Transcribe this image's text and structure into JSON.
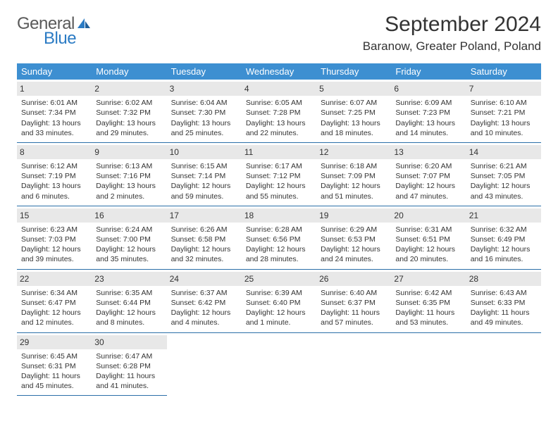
{
  "logo": {
    "line1": "General",
    "line2": "Blue"
  },
  "title": "September 2024",
  "location": "Baranow, Greater Poland, Poland",
  "colors": {
    "header_bg": "#3d8fd1",
    "header_text": "#ffffff",
    "dayheader_bg": "#e8e8e8",
    "border": "#2b6fa8",
    "logo_gray": "#5a5a5a",
    "logo_blue": "#2b7bc4",
    "text": "#333333",
    "page_bg": "#ffffff"
  },
  "typography": {
    "title_fontsize": 30,
    "location_fontsize": 17,
    "weekday_fontsize": 13,
    "daynum_fontsize": 12,
    "cell_fontsize": 10.5,
    "font_family": "Arial"
  },
  "weekdays": [
    "Sunday",
    "Monday",
    "Tuesday",
    "Wednesday",
    "Thursday",
    "Friday",
    "Saturday"
  ],
  "days": [
    {
      "n": "1",
      "sr": "Sunrise: 6:01 AM",
      "ss": "Sunset: 7:34 PM",
      "d1": "Daylight: 13 hours",
      "d2": "and 33 minutes."
    },
    {
      "n": "2",
      "sr": "Sunrise: 6:02 AM",
      "ss": "Sunset: 7:32 PM",
      "d1": "Daylight: 13 hours",
      "d2": "and 29 minutes."
    },
    {
      "n": "3",
      "sr": "Sunrise: 6:04 AM",
      "ss": "Sunset: 7:30 PM",
      "d1": "Daylight: 13 hours",
      "d2": "and 25 minutes."
    },
    {
      "n": "4",
      "sr": "Sunrise: 6:05 AM",
      "ss": "Sunset: 7:28 PM",
      "d1": "Daylight: 13 hours",
      "d2": "and 22 minutes."
    },
    {
      "n": "5",
      "sr": "Sunrise: 6:07 AM",
      "ss": "Sunset: 7:25 PM",
      "d1": "Daylight: 13 hours",
      "d2": "and 18 minutes."
    },
    {
      "n": "6",
      "sr": "Sunrise: 6:09 AM",
      "ss": "Sunset: 7:23 PM",
      "d1": "Daylight: 13 hours",
      "d2": "and 14 minutes."
    },
    {
      "n": "7",
      "sr": "Sunrise: 6:10 AM",
      "ss": "Sunset: 7:21 PM",
      "d1": "Daylight: 13 hours",
      "d2": "and 10 minutes."
    },
    {
      "n": "8",
      "sr": "Sunrise: 6:12 AM",
      "ss": "Sunset: 7:19 PM",
      "d1": "Daylight: 13 hours",
      "d2": "and 6 minutes."
    },
    {
      "n": "9",
      "sr": "Sunrise: 6:13 AM",
      "ss": "Sunset: 7:16 PM",
      "d1": "Daylight: 13 hours",
      "d2": "and 2 minutes."
    },
    {
      "n": "10",
      "sr": "Sunrise: 6:15 AM",
      "ss": "Sunset: 7:14 PM",
      "d1": "Daylight: 12 hours",
      "d2": "and 59 minutes."
    },
    {
      "n": "11",
      "sr": "Sunrise: 6:17 AM",
      "ss": "Sunset: 7:12 PM",
      "d1": "Daylight: 12 hours",
      "d2": "and 55 minutes."
    },
    {
      "n": "12",
      "sr": "Sunrise: 6:18 AM",
      "ss": "Sunset: 7:09 PM",
      "d1": "Daylight: 12 hours",
      "d2": "and 51 minutes."
    },
    {
      "n": "13",
      "sr": "Sunrise: 6:20 AM",
      "ss": "Sunset: 7:07 PM",
      "d1": "Daylight: 12 hours",
      "d2": "and 47 minutes."
    },
    {
      "n": "14",
      "sr": "Sunrise: 6:21 AM",
      "ss": "Sunset: 7:05 PM",
      "d1": "Daylight: 12 hours",
      "d2": "and 43 minutes."
    },
    {
      "n": "15",
      "sr": "Sunrise: 6:23 AM",
      "ss": "Sunset: 7:03 PM",
      "d1": "Daylight: 12 hours",
      "d2": "and 39 minutes."
    },
    {
      "n": "16",
      "sr": "Sunrise: 6:24 AM",
      "ss": "Sunset: 7:00 PM",
      "d1": "Daylight: 12 hours",
      "d2": "and 35 minutes."
    },
    {
      "n": "17",
      "sr": "Sunrise: 6:26 AM",
      "ss": "Sunset: 6:58 PM",
      "d1": "Daylight: 12 hours",
      "d2": "and 32 minutes."
    },
    {
      "n": "18",
      "sr": "Sunrise: 6:28 AM",
      "ss": "Sunset: 6:56 PM",
      "d1": "Daylight: 12 hours",
      "d2": "and 28 minutes."
    },
    {
      "n": "19",
      "sr": "Sunrise: 6:29 AM",
      "ss": "Sunset: 6:53 PM",
      "d1": "Daylight: 12 hours",
      "d2": "and 24 minutes."
    },
    {
      "n": "20",
      "sr": "Sunrise: 6:31 AM",
      "ss": "Sunset: 6:51 PM",
      "d1": "Daylight: 12 hours",
      "d2": "and 20 minutes."
    },
    {
      "n": "21",
      "sr": "Sunrise: 6:32 AM",
      "ss": "Sunset: 6:49 PM",
      "d1": "Daylight: 12 hours",
      "d2": "and 16 minutes."
    },
    {
      "n": "22",
      "sr": "Sunrise: 6:34 AM",
      "ss": "Sunset: 6:47 PM",
      "d1": "Daylight: 12 hours",
      "d2": "and 12 minutes."
    },
    {
      "n": "23",
      "sr": "Sunrise: 6:35 AM",
      "ss": "Sunset: 6:44 PM",
      "d1": "Daylight: 12 hours",
      "d2": "and 8 minutes."
    },
    {
      "n": "24",
      "sr": "Sunrise: 6:37 AM",
      "ss": "Sunset: 6:42 PM",
      "d1": "Daylight: 12 hours",
      "d2": "and 4 minutes."
    },
    {
      "n": "25",
      "sr": "Sunrise: 6:39 AM",
      "ss": "Sunset: 6:40 PM",
      "d1": "Daylight: 12 hours",
      "d2": "and 1 minute."
    },
    {
      "n": "26",
      "sr": "Sunrise: 6:40 AM",
      "ss": "Sunset: 6:37 PM",
      "d1": "Daylight: 11 hours",
      "d2": "and 57 minutes."
    },
    {
      "n": "27",
      "sr": "Sunrise: 6:42 AM",
      "ss": "Sunset: 6:35 PM",
      "d1": "Daylight: 11 hours",
      "d2": "and 53 minutes."
    },
    {
      "n": "28",
      "sr": "Sunrise: 6:43 AM",
      "ss": "Sunset: 6:33 PM",
      "d1": "Daylight: 11 hours",
      "d2": "and 49 minutes."
    },
    {
      "n": "29",
      "sr": "Sunrise: 6:45 AM",
      "ss": "Sunset: 6:31 PM",
      "d1": "Daylight: 11 hours",
      "d2": "and 45 minutes."
    },
    {
      "n": "30",
      "sr": "Sunrise: 6:47 AM",
      "ss": "Sunset: 6:28 PM",
      "d1": "Daylight: 11 hours",
      "d2": "and 41 minutes."
    }
  ]
}
